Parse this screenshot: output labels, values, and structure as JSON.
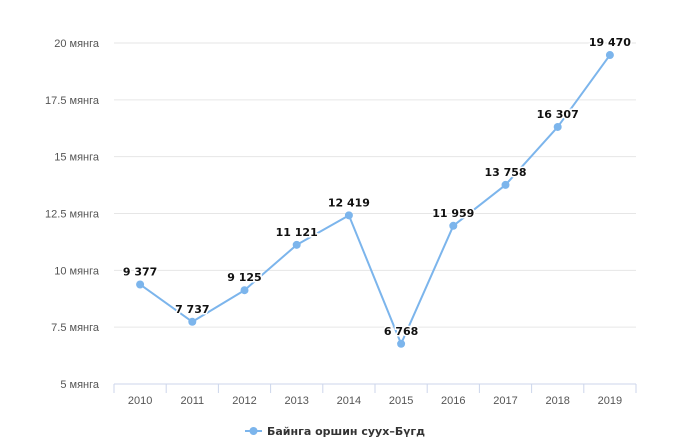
{
  "chart_data": {
    "type": "line",
    "title": "",
    "xlabel": "",
    "ylabel": "",
    "ylim": [
      5000,
      20000
    ],
    "y_ticks": [
      {
        "value": 5000,
        "label": "5 мянга"
      },
      {
        "value": 7500,
        "label": "7.5 мянга"
      },
      {
        "value": 10000,
        "label": "10 мянга"
      },
      {
        "value": 12500,
        "label": "12.5 мянга"
      },
      {
        "value": 15000,
        "label": "15 мянга"
      },
      {
        "value": 17500,
        "label": "17.5 мянга"
      },
      {
        "value": 20000,
        "label": "20 мянга"
      }
    ],
    "categories": [
      "2010",
      "2011",
      "2012",
      "2013",
      "2014",
      "2015",
      "2016",
      "2017",
      "2018",
      "2019"
    ],
    "series": [
      {
        "name": "Байнга оршин суух–Бүгд",
        "color": "#7cb5ec",
        "values": [
          9377,
          7737,
          9125,
          11121,
          12419,
          6768,
          11959,
          13758,
          16307,
          19470
        ],
        "labels": [
          "9 377",
          "7 737",
          "9 125",
          "11 121",
          "12 419",
          "6 768",
          "11 959",
          "13 758",
          "16 307",
          "19 470"
        ]
      }
    ],
    "grid": true,
    "legend_position": "bottom-center"
  }
}
